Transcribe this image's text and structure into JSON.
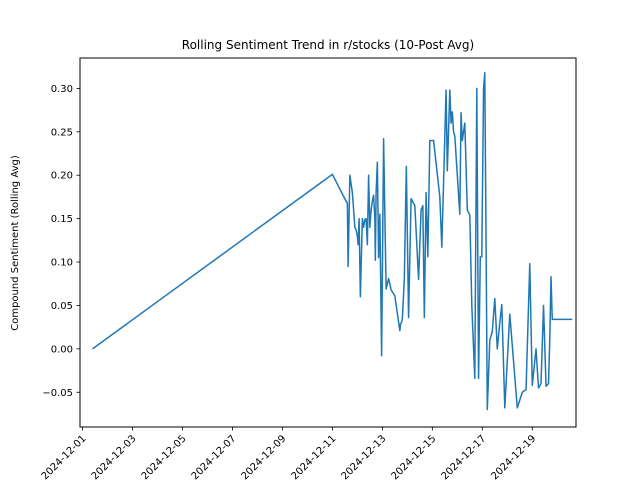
{
  "chart_data": {
    "type": "line",
    "title": "Rolling Sentiment Trend in r/stocks (10-Post Avg)",
    "xlabel": "",
    "ylabel": "Compound Sentiment (Rolling Avg)",
    "x_start": "2024-12-01",
    "xlim": [
      -0.1,
      19.75
    ],
    "ylim": [
      -0.09,
      0.335
    ],
    "grid": false,
    "xticks": [
      "2024-12-01",
      "2024-12-03",
      "2024-12-05",
      "2024-12-07",
      "2024-12-09",
      "2024-12-11",
      "2024-12-13",
      "2024-12-15",
      "2024-12-17",
      "2024-12-19"
    ],
    "yticks": [
      -0.05,
      0.0,
      0.05,
      0.1,
      0.15,
      0.2,
      0.25,
      0.3
    ],
    "color": "#1f77b4",
    "series": [
      {
        "x": [
          0.4,
          10.0,
          10.55,
          10.6,
          10.63,
          10.7,
          10.8,
          10.9,
          10.95,
          11.0,
          11.03,
          11.07,
          11.12,
          11.2,
          11.25,
          11.3,
          11.35,
          11.4,
          11.45,
          11.5,
          11.55,
          11.6,
          11.65,
          11.7,
          11.72,
          11.75,
          11.8,
          11.85,
          11.9,
          11.97,
          12.05,
          12.15,
          12.25,
          12.35,
          12.5,
          12.7,
          12.73,
          12.76,
          12.8,
          12.88,
          12.96,
          13.05,
          13.15,
          13.3,
          13.45,
          13.55,
          13.62,
          13.68,
          13.75,
          13.82,
          13.9,
          14.05,
          14.3,
          14.38,
          14.55,
          14.6,
          14.7,
          14.75,
          14.8,
          14.85,
          14.9,
          15.1,
          15.15,
          15.2,
          15.3,
          15.4,
          15.5,
          15.58,
          15.7,
          15.78,
          15.85,
          15.92,
          15.98,
          16.05,
          16.1,
          16.2,
          16.3,
          16.4,
          16.5,
          16.6,
          16.7,
          16.78,
          16.9,
          17.1,
          17.4,
          17.6,
          17.75,
          17.9,
          18.0,
          18.15,
          18.25,
          18.35,
          18.45,
          18.55,
          18.65,
          18.7,
          18.75,
          18.8,
          18.85,
          18.9,
          18.95,
          19.0,
          19.05,
          19.1,
          19.15,
          19.2,
          19.3,
          19.4,
          19.5,
          19.6
        ],
        "y": [
          0.0,
          0.201,
          0.17,
          0.168,
          0.095,
          0.2,
          0.18,
          0.14,
          0.137,
          0.13,
          0.12,
          0.15,
          0.06,
          0.15,
          0.14,
          0.149,
          0.15,
          0.12,
          0.2,
          0.14,
          0.16,
          0.17,
          0.177,
          0.15,
          0.102,
          0.18,
          0.215,
          0.105,
          0.155,
          -0.008,
          0.242,
          0.069,
          0.081,
          0.068,
          0.061,
          0.021,
          0.029,
          0.03,
          0.034,
          0.081,
          0.21,
          0.036,
          0.173,
          0.165,
          0.08,
          0.16,
          0.165,
          0.036,
          0.18,
          0.106,
          0.24,
          0.24,
          0.175,
          0.117,
          0.298,
          0.205,
          0.298,
          0.26,
          0.273,
          0.25,
          0.245,
          0.155,
          0.272,
          0.24,
          0.26,
          0.16,
          0.154,
          0.05,
          -0.034,
          0.3,
          -0.034,
          0.106,
          0.106,
          0.3,
          0.318,
          -0.07,
          0.01,
          0.02,
          0.058,
          0.0,
          0.03,
          0.051,
          -0.068,
          0.04,
          -0.068,
          -0.05,
          -0.047,
          0.098,
          -0.042,
          0.0,
          -0.045,
          -0.04,
          0.05,
          -0.043,
          -0.04,
          0.01,
          0.083,
          0.034,
          0.034,
          0.034,
          0.034,
          0.034,
          0.034,
          0.034,
          0.034,
          0.034,
          0.034,
          0.034,
          0.034,
          0.034
        ]
      }
    ]
  }
}
